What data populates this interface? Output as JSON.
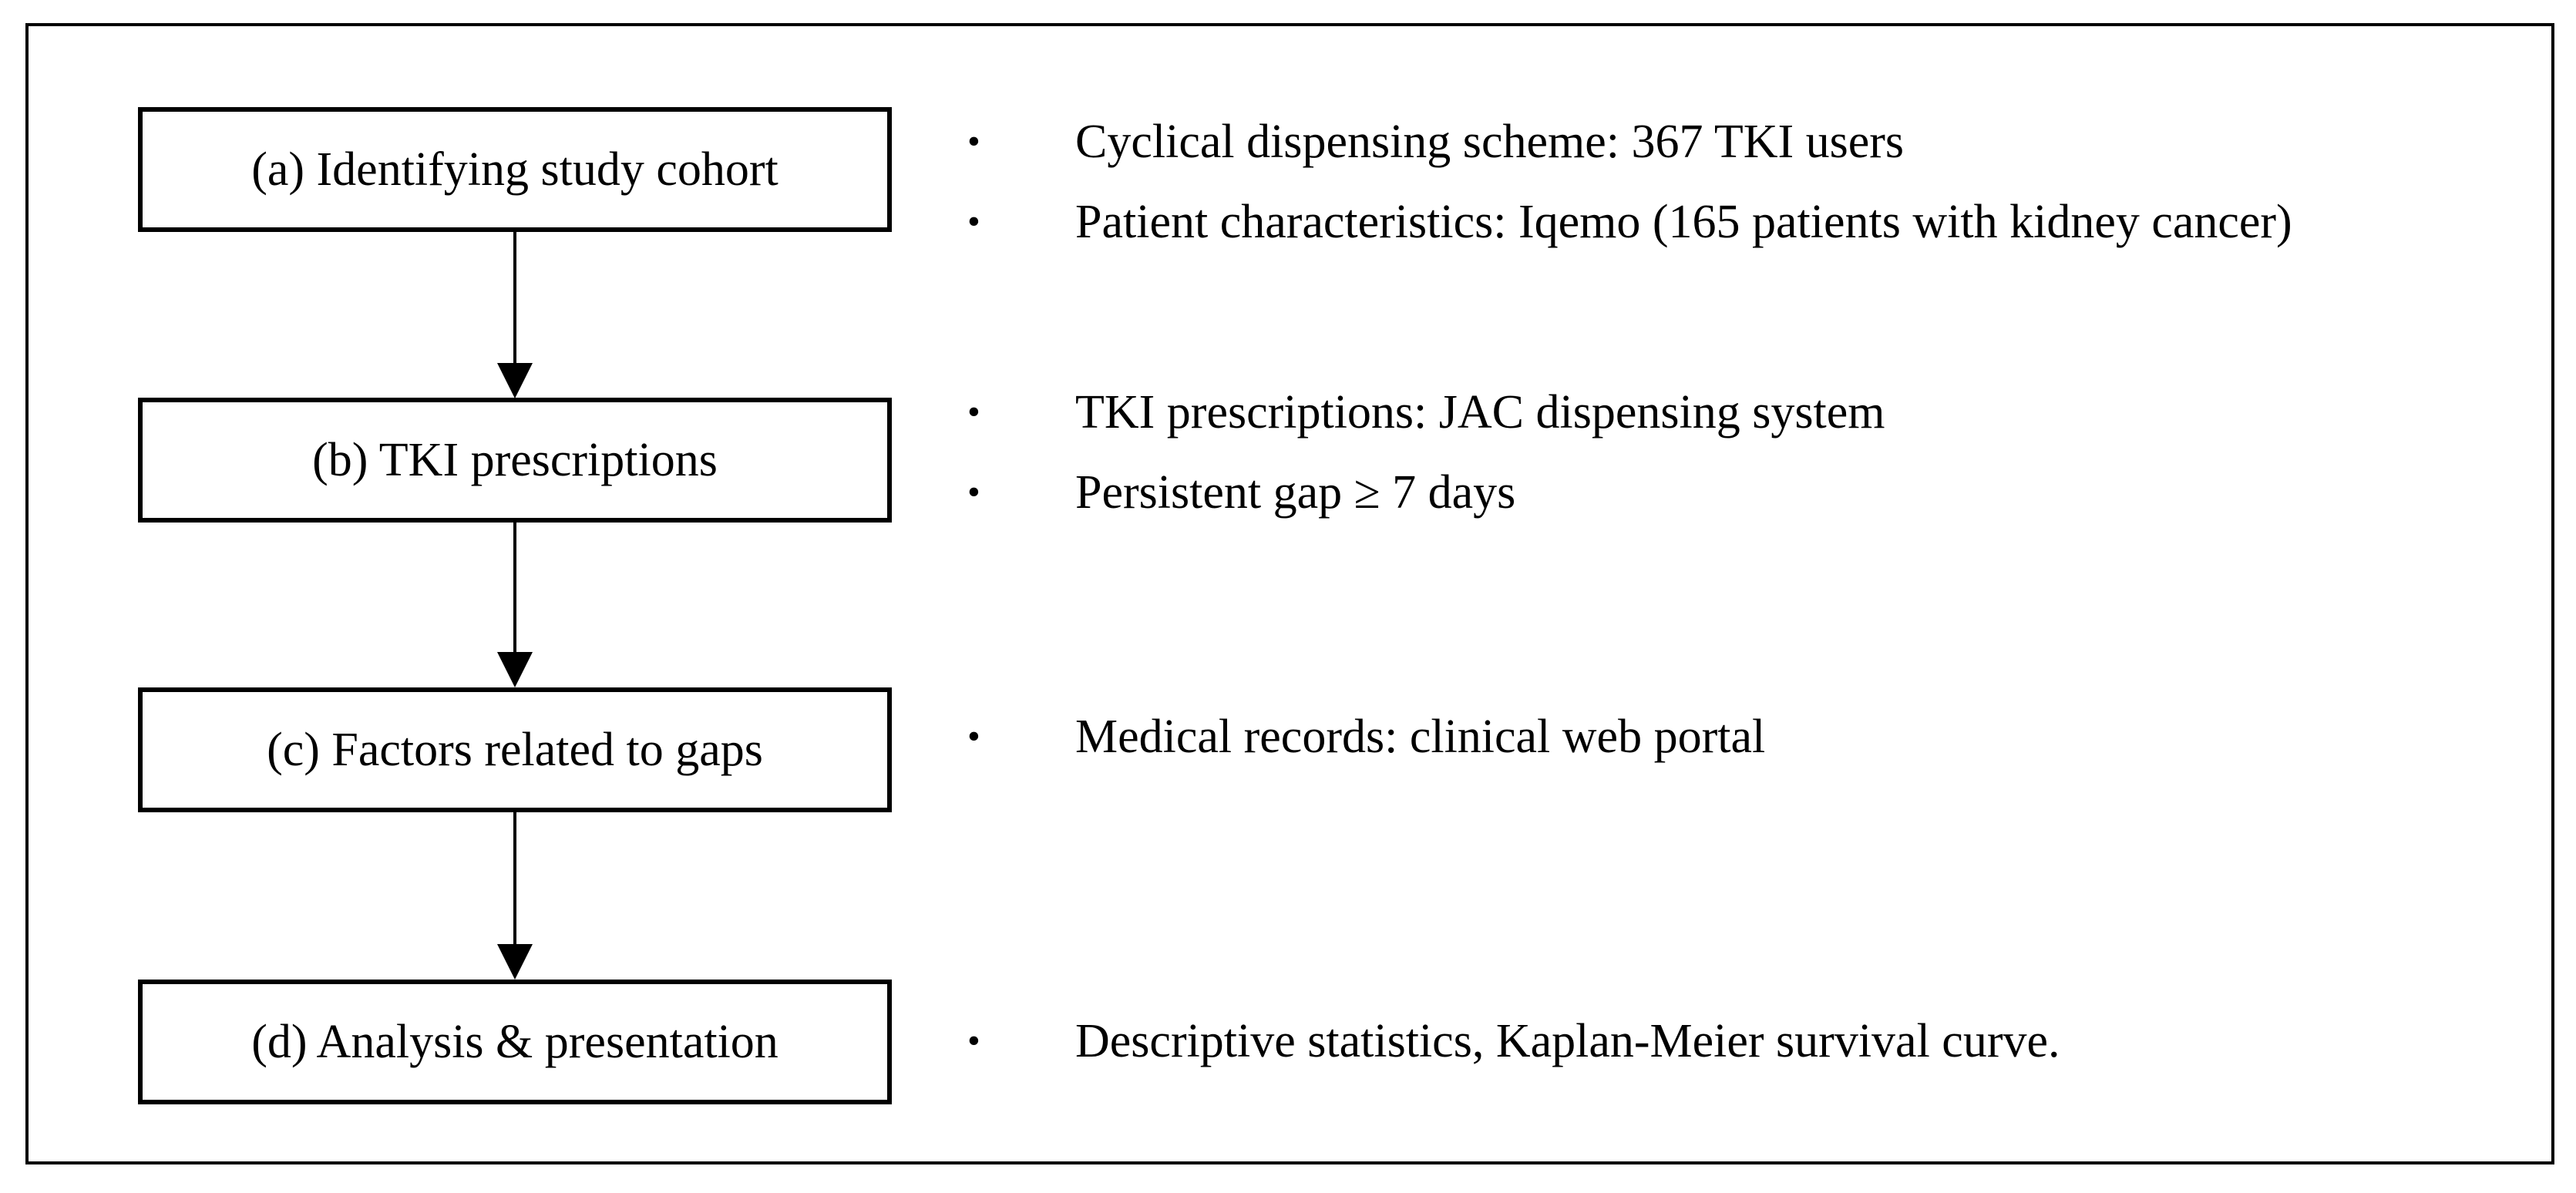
{
  "figure": {
    "type": "flowchart",
    "colors": {
      "border": "#000000",
      "text": "#000000",
      "background": "#ffffff"
    },
    "bullet_glyph": "•",
    "steps": [
      {
        "id": "a",
        "box_label": "(a) Identifying study cohort",
        "bullets": [
          "Cyclical dispensing scheme: 367 TKI users",
          "Patient characteristics: Iqemo (165 patients with kidney cancer)"
        ]
      },
      {
        "id": "b",
        "box_label": "(b) TKI prescriptions",
        "bullets": [
          "TKI prescriptions: JAC dispensing system",
          "Persistent gap ≥ 7 days"
        ]
      },
      {
        "id": "c",
        "box_label": "(c) Factors related to gaps",
        "bullets": [
          "Medical records: clinical web portal"
        ]
      },
      {
        "id": "d",
        "box_label": "(d) Analysis & presentation",
        "bullets": [
          "Descriptive statistics, Kaplan-Meier survival curve."
        ]
      }
    ]
  }
}
